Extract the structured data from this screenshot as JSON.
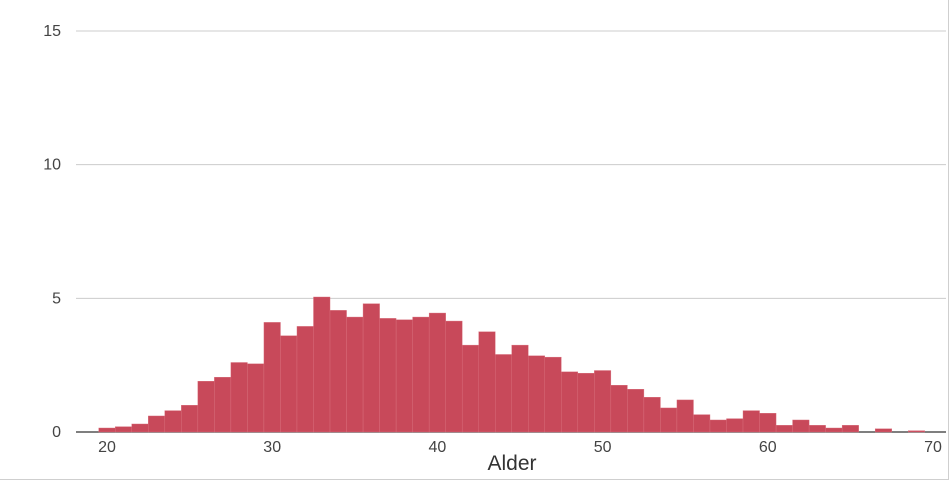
{
  "chart_data": {
    "type": "bar",
    "title": "",
    "xlabel": "Alder",
    "ylabel": "",
    "xlim": [
      19,
      71
    ],
    "ylim": [
      0,
      15
    ],
    "bin_width": 1,
    "grid": true,
    "legend": "none",
    "bar_color": "#c8495a",
    "x_ticks": [
      20,
      30,
      40,
      50,
      60,
      70
    ],
    "y_ticks": [
      0,
      5,
      10,
      15
    ],
    "x": [
      20,
      21,
      22,
      23,
      24,
      25,
      26,
      27,
      28,
      29,
      30,
      31,
      32,
      33,
      34,
      35,
      36,
      37,
      38,
      39,
      40,
      41,
      42,
      43,
      44,
      45,
      46,
      47,
      48,
      49,
      50,
      51,
      52,
      53,
      54,
      55,
      56,
      57,
      58,
      59,
      60,
      61,
      62,
      63,
      64,
      65,
      66,
      67,
      68,
      69,
      70
    ],
    "values": [
      0.15,
      0.2,
      0.3,
      0.6,
      0.8,
      1.0,
      1.9,
      2.05,
      2.6,
      2.55,
      4.1,
      3.6,
      3.95,
      5.05,
      4.55,
      4.3,
      4.8,
      4.25,
      4.2,
      4.3,
      4.45,
      4.15,
      3.25,
      3.75,
      2.9,
      3.25,
      2.85,
      2.8,
      2.25,
      2.2,
      2.3,
      1.75,
      1.6,
      1.3,
      0.9,
      1.2,
      0.65,
      0.45,
      0.5,
      0.8,
      0.7,
      0.25,
      0.45,
      0.25,
      0.15,
      0.25,
      0,
      0.12,
      0,
      0.05,
      0
    ]
  }
}
